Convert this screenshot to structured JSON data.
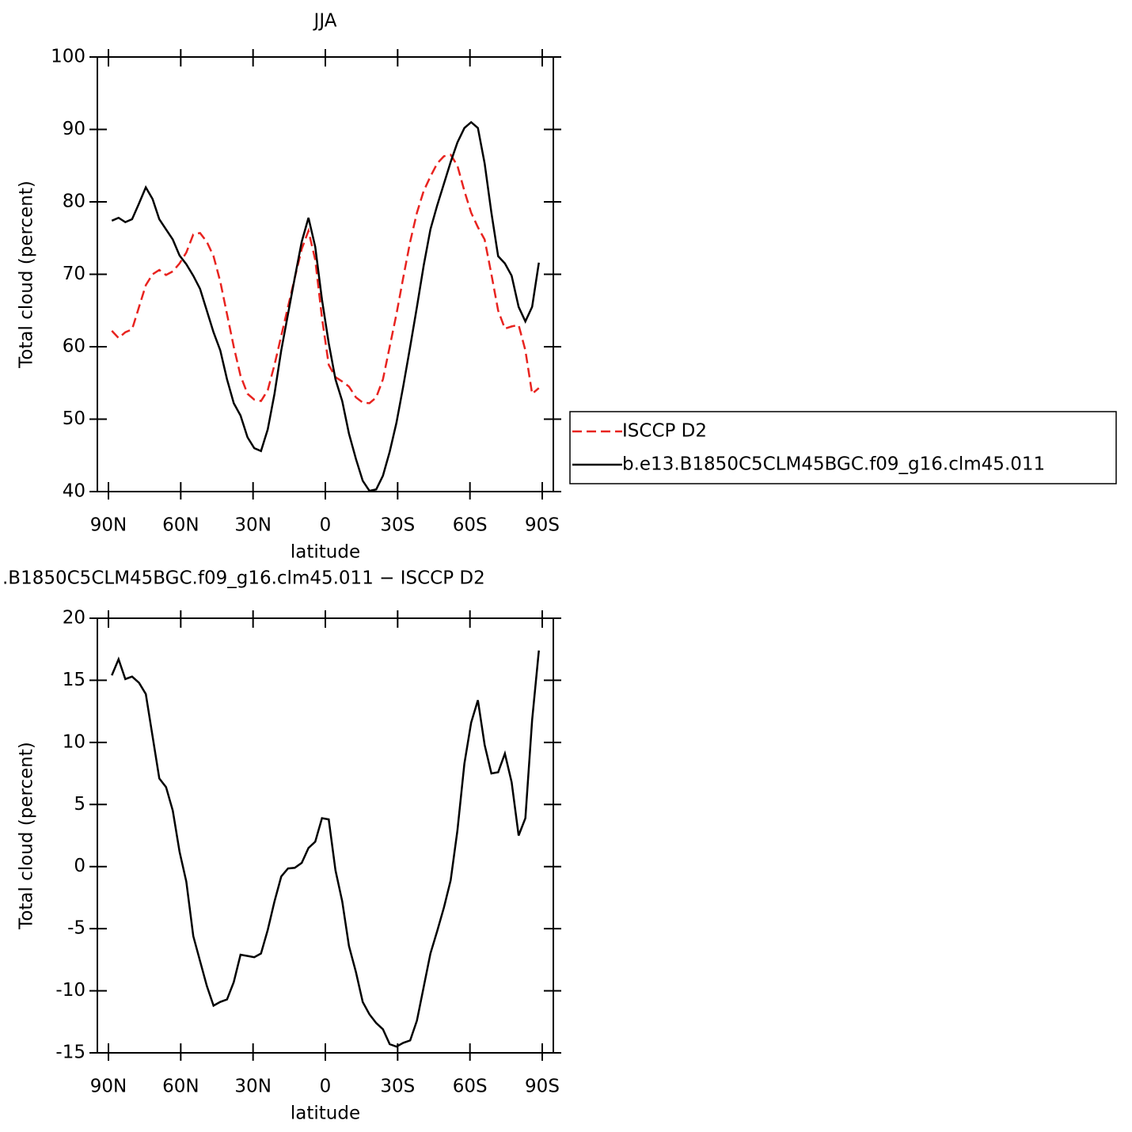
{
  "chart_data": [
    {
      "type": "line",
      "title": "JJA",
      "xlabel": "latitude",
      "ylabel": "Total cloud (percent)",
      "x": [
        88.6,
        85.8,
        83.0,
        80.2,
        77.3,
        74.5,
        71.7,
        68.9,
        66.1,
        63.3,
        60.5,
        57.7,
        54.8,
        52.0,
        49.2,
        46.4,
        43.6,
        40.8,
        38.0,
        35.2,
        32.3,
        29.5,
        26.7,
        23.9,
        21.1,
        18.3,
        15.5,
        12.7,
        9.8,
        7.0,
        4.2,
        1.4,
        -1.4,
        -4.2,
        -7.0,
        -9.8,
        -12.7,
        -15.5,
        -18.3,
        -21.1,
        -23.9,
        -26.7,
        -29.5,
        -32.3,
        -35.2,
        -38.0,
        -40.8,
        -43.6,
        -46.4,
        -49.2,
        -52.0,
        -54.8,
        -57.7,
        -60.5,
        -63.3,
        -66.1,
        -68.9,
        -71.7,
        -74.5,
        -77.3,
        -80.2,
        -83.0,
        -85.8,
        -88.6
      ],
      "series": [
        {
          "name": "ISCCP D2",
          "color": "#e8231f",
          "dashed": true,
          "values": [
            62.2,
            61.2,
            62,
            62.4,
            65.5,
            68.5,
            70,
            70.6,
            69.9,
            70.4,
            71.5,
            73,
            75.5,
            75.7,
            74.5,
            72.5,
            69,
            64.5,
            60,
            56,
            53.5,
            52.7,
            52.5,
            54,
            57.5,
            61.5,
            65.5,
            69.5,
            73.5,
            76,
            72,
            64,
            57.5,
            55.8,
            55.2,
            54.5,
            53,
            52.3,
            52.2,
            53,
            55.5,
            60,
            64.5,
            69.5,
            74.5,
            78.5,
            81.5,
            83.5,
            85.3,
            86.3,
            86.5,
            85,
            81.5,
            78.5,
            76.5,
            74.8,
            70,
            65,
            62.5,
            62.8,
            63,
            59.5,
            53.5,
            54.3
          ]
        },
        {
          "name": "b.e13.B1850C5CLM45BGC.f09_g16.clm45.011",
          "color": "#000000",
          "dashed": false,
          "values": [
            77.4,
            77.8,
            77.2,
            77.6,
            79.8,
            82,
            80.4,
            77.6,
            76.2,
            74.8,
            72.6,
            71.4,
            69.8,
            68,
            65,
            62,
            59.5,
            55.5,
            52.2,
            50.5,
            47.5,
            46,
            45.6,
            48.6,
            53.5,
            59.5,
            64.5,
            69.5,
            74.5,
            77.8,
            73.8,
            66.5,
            60.5,
            55.5,
            52.5,
            48,
            44.5,
            41.5,
            40.1,
            40.3,
            42.2,
            45.5,
            49.5,
            54.5,
            60,
            65.5,
            71.2,
            76.2,
            79.5,
            82.5,
            85.5,
            88.2,
            90.2,
            91,
            90.2,
            85.3,
            78.5,
            72.5,
            71.5,
            69.8,
            65.5,
            63.5,
            65.5,
            71.6
          ]
        }
      ],
      "xlim": [
        94.6,
        -94.6
      ],
      "ylim": [
        40,
        100
      ],
      "xticks": [
        {
          "value": 90,
          "label": "90N"
        },
        {
          "value": 60,
          "label": "60N"
        },
        {
          "value": 30,
          "label": "30N"
        },
        0,
        {
          "value": -30,
          "label": "30S"
        },
        {
          "value": -60,
          "label": "60S"
        },
        {
          "value": -90,
          "label": "90S"
        }
      ],
      "yticks": [
        40,
        50,
        60,
        70,
        80,
        90,
        100
      ],
      "legend": "right"
    },
    {
      "type": "line",
      "title": ".B1850C5CLM45BGC.f09_g16.clm45.011 − ISCCP D2",
      "xlabel": "latitude",
      "ylabel": "Total cloud (percent)",
      "x": [
        88.6,
        85.8,
        83.0,
        80.2,
        77.3,
        74.5,
        71.7,
        68.9,
        66.1,
        63.3,
        60.5,
        57.7,
        54.8,
        52.0,
        49.2,
        46.4,
        43.6,
        40.8,
        38.0,
        35.2,
        32.3,
        29.5,
        26.7,
        23.9,
        21.1,
        18.3,
        15.5,
        12.7,
        9.8,
        7.0,
        4.2,
        1.4,
        -1.4,
        -4.2,
        -7.0,
        -9.8,
        -12.7,
        -15.5,
        -18.3,
        -21.1,
        -23.9,
        -26.7,
        -29.5,
        -32.3,
        -35.2,
        -38.0,
        -40.8,
        -43.6,
        -46.4,
        -49.2,
        -52.0,
        -54.8,
        -57.7,
        -60.5,
        -63.3,
        -66.1,
        -68.9,
        -71.7,
        -74.5,
        -77.3,
        -80.2,
        -83.0,
        -85.8,
        -88.6
      ],
      "series": [
        {
          "color": "#000000",
          "dashed": false,
          "values": [
            15.4,
            16.7,
            15.1,
            15.3,
            14.8,
            13.9,
            10.5,
            7.1,
            6.4,
            4.5,
            1.2,
            -1.2,
            -5.6,
            -7.6,
            -9.6,
            -11.2,
            -10.9,
            -10.7,
            -9.3,
            -7.1,
            -7.2,
            -7.3,
            -7.0,
            -5.1,
            -2.8,
            -0.8,
            -0.15,
            -0.1,
            0.3,
            1.5,
            2.0,
            3.9,
            3.8,
            -0.3,
            -2.8,
            -6.4,
            -8.5,
            -10.9,
            -11.9,
            -12.6,
            -13.1,
            -14.3,
            -14.5,
            -14.2,
            -14.0,
            -12.4,
            -9.7,
            -7.0,
            -5.2,
            -3.3,
            -1.1,
            2.9,
            8.3,
            11.6,
            13.4,
            9.8,
            7.5,
            7.6,
            9.1,
            6.8,
            2.5,
            3.9,
            11.8,
            17.4
          ]
        }
      ],
      "xlim": [
        94.6,
        -94.6
      ],
      "ylim": [
        -15,
        20
      ],
      "xticks": [
        {
          "value": 90,
          "label": "90N"
        },
        {
          "value": 60,
          "label": "60N"
        },
        {
          "value": 30,
          "label": "30N"
        },
        0,
        {
          "value": -30,
          "label": "30S"
        },
        {
          "value": -60,
          "label": "60S"
        },
        {
          "value": -90,
          "label": "90S"
        }
      ],
      "yticks": [
        -15,
        -10,
        -5,
        0,
        5,
        10,
        15,
        20
      ]
    }
  ]
}
